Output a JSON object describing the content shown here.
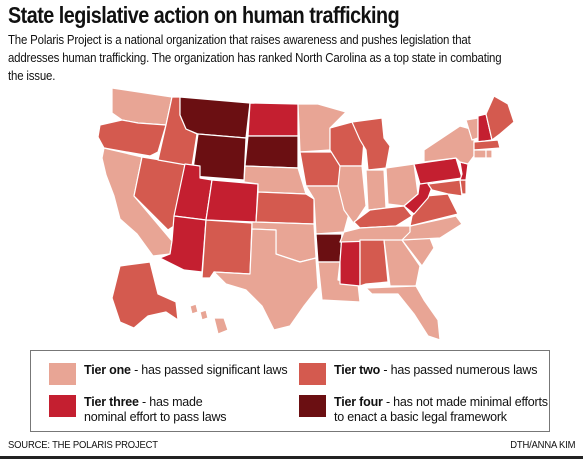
{
  "title": "State legislative action on human trafficking",
  "subtitle": "The Polaris Project is a national organization that raises awareness and pushes legislation that addresses human trafficking. The organization has ranked North Carolina as a top state in combating the issue.",
  "tiers": {
    "t1": {
      "name": "Tier one",
      "desc": " - has passed significant laws",
      "color": "#e8a595"
    },
    "t2": {
      "name": "Tier two",
      "desc": " - has passed numerous laws",
      "color": "#d45a4f"
    },
    "t3": {
      "name": "Tier three",
      "desc": " - has made nominal effort to pass laws",
      "color": "#c41f30"
    },
    "t4": {
      "name": "Tier four",
      "desc": " - has not made minimal efforts to enact a basic legal framework",
      "color": "#6b0f12"
    }
  },
  "states": {
    "WA": "t1",
    "OR": "t2",
    "CA": "t1",
    "NV": "t2",
    "ID": "t2",
    "MT": "t4",
    "WY": "t4",
    "UT": "t3",
    "AZ": "t3",
    "CO": "t3",
    "NM": "t2",
    "ND": "t3",
    "SD": "t4",
    "NE": "t1",
    "KS": "t2",
    "OK": "t1",
    "TX": "t1",
    "MN": "t1",
    "IA": "t2",
    "MO": "t1",
    "AR": "t4",
    "LA": "t1",
    "WI": "t2",
    "IL": "t1",
    "MS": "t3",
    "MI": "t2",
    "IN": "t1",
    "KY": "t2",
    "TN": "t1",
    "AL": "t2",
    "OH": "t1",
    "WV": "t3",
    "GA": "t1",
    "FL": "t1",
    "SC": "t1",
    "NC": "t1",
    "VA": "t2",
    "PA": "t3",
    "NY": "t1",
    "VT": "t1",
    "NH": "t3",
    "ME": "t2",
    "MA": "t2",
    "NJ": "t3",
    "MD": "t2",
    "DE": "t2",
    "CT": "t1",
    "RI": "t1",
    "AK": "t2",
    "HI": "t1"
  },
  "footer": {
    "source": "SOURCE: THE POLARIS PROJECT",
    "credit": "DTH/ANNA KIM"
  }
}
